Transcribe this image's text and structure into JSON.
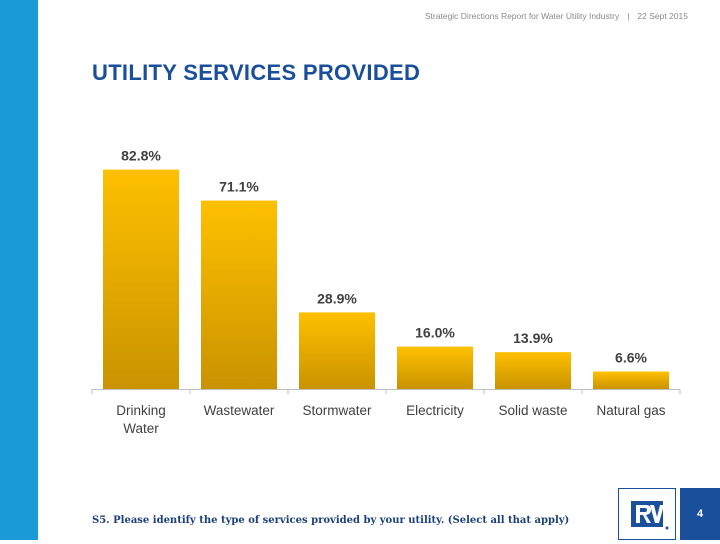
{
  "header": {
    "report_title": "Strategic Directions Report for Water Utility Industry",
    "separator": "|",
    "date": "22 Sept 2015"
  },
  "slide": {
    "title": "UTILITY SERVICES PROVIDED",
    "question": "S5. Please identify the type of services provided by your utility. (Select all that apply)",
    "page_number": "4"
  },
  "colors": {
    "accent_blue": "#1a9ad6",
    "title_blue": "#1a4f9c",
    "bar_top": "#ffc000",
    "bar_bottom": "#c99300"
  },
  "chart_data": {
    "type": "bar",
    "categories": [
      "Drinking Water",
      "Wastewater",
      "Stormwater",
      "Electricity",
      "Solid waste",
      "Natural gas"
    ],
    "values": [
      82.8,
      71.1,
      28.9,
      16.0,
      13.9,
      6.6
    ],
    "data_labels": [
      "82.8%",
      "71.1%",
      "28.9%",
      "16.0%",
      "13.9%",
      "6.6%"
    ],
    "title": "UTILITY SERVICES PROVIDED",
    "xlabel": "",
    "ylabel": "",
    "ylim": [
      0,
      100
    ]
  }
}
